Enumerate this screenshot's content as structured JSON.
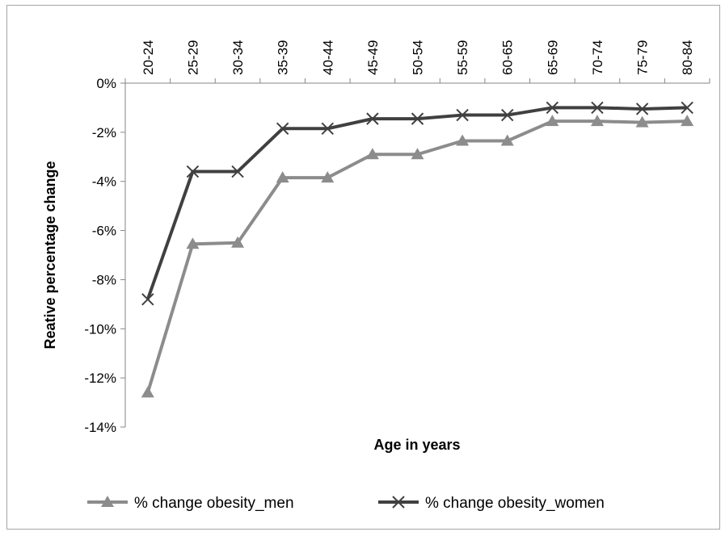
{
  "chart_data": {
    "type": "line",
    "title": "",
    "xlabel": "Age in years",
    "ylabel": "Reative percentage  change",
    "categories": [
      "20-24",
      "25-29",
      "30-34",
      "35-39",
      "40-44",
      "45-49",
      "50-54",
      "55-59",
      "60-65",
      "65-69",
      "70-74",
      "75-79",
      "80-84"
    ],
    "ylim": [
      -14,
      0
    ],
    "yticks": [
      0,
      -2,
      -4,
      -6,
      -8,
      -10,
      -12,
      -14
    ],
    "ytick_labels": [
      "0%",
      "-2%",
      "-4%",
      "-6%",
      "-8%",
      "-10%",
      "-12%",
      "-14%"
    ],
    "x_axis_position": "top",
    "grid": false,
    "legend_position": "bottom",
    "series": [
      {
        "name": "% change obesity_men",
        "color": "#8c8c8c",
        "marker": "triangle",
        "values": [
          -12.6,
          -6.55,
          -6.5,
          -3.85,
          -3.85,
          -2.9,
          -2.9,
          -2.35,
          -2.35,
          -1.55,
          -1.55,
          -1.6,
          -1.55
        ]
      },
      {
        "name": "% change obesity_women",
        "color": "#404040",
        "marker": "x",
        "values": [
          -8.8,
          -3.6,
          -3.6,
          -1.85,
          -1.85,
          -1.45,
          -1.45,
          -1.3,
          -1.3,
          -1.0,
          -1.0,
          -1.05,
          -1.0
        ]
      }
    ]
  }
}
